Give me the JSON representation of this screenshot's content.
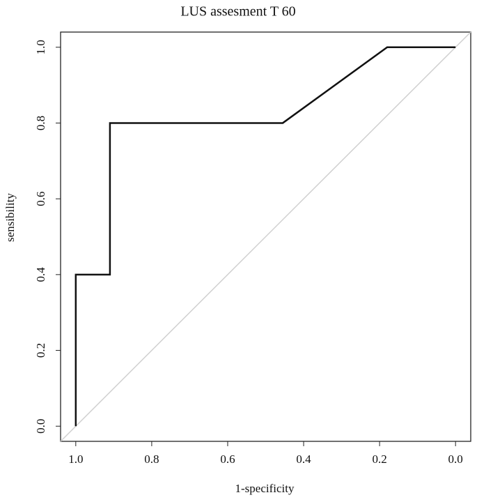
{
  "chart_data": {
    "type": "line",
    "title": "LUS assesment T 60",
    "x_label": "1-specificity",
    "y_label": "sensibility",
    "x": [
      1,
      1,
      0.91,
      0.91,
      0.455,
      0.18,
      0
    ],
    "values": [
      0,
      0.4,
      0.4,
      0.8,
      0.8,
      1,
      1
    ],
    "color": "#111111",
    "diagonal_color": "#d0d0d0",
    "xlim": [
      1.04,
      -0.04
    ],
    "ylim": [
      -0.04,
      1.04
    ],
    "xticks": [
      {
        "value": 1,
        "label": "1.0"
      },
      0.8,
      0.6,
      0.4,
      0.2,
      {
        "value": 0,
        "label": "0.0"
      }
    ],
    "yticks": [
      {
        "value": 0,
        "label": "0.0"
      },
      0.2,
      0.4,
      0.6,
      0.8,
      {
        "value": 1,
        "label": "1.0"
      }
    ]
  }
}
